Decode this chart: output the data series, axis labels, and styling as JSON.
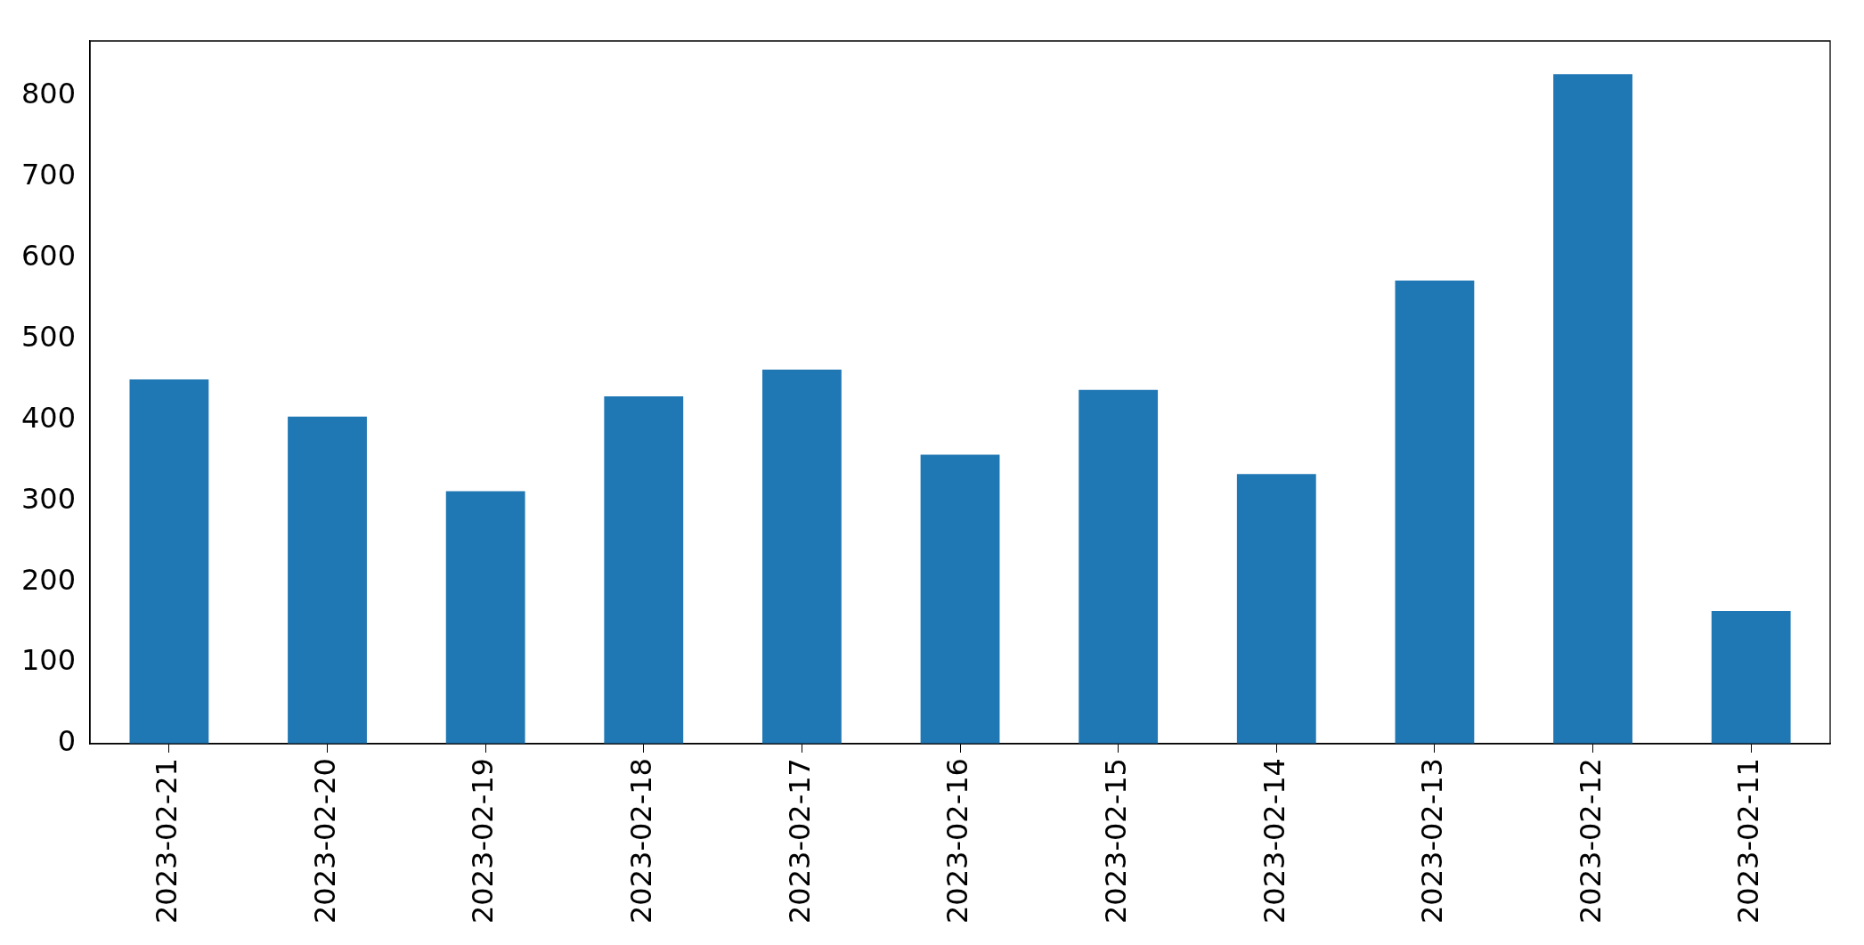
{
  "chart_data": {
    "type": "bar",
    "categories": [
      "2023-02-21",
      "2023-02-20",
      "2023-02-19",
      "2023-02-18",
      "2023-02-17",
      "2023-02-16",
      "2023-02-15",
      "2023-02-14",
      "2023-02-13",
      "2023-02-12",
      "2023-02-11"
    ],
    "values": [
      450,
      404,
      312,
      429,
      462,
      357,
      437,
      333,
      572,
      827,
      164
    ],
    "color": "#1f77b4",
    "ylim": [
      0,
      868
    ],
    "yticks": [
      0,
      100,
      200,
      300,
      400,
      500,
      600,
      700,
      800
    ]
  }
}
